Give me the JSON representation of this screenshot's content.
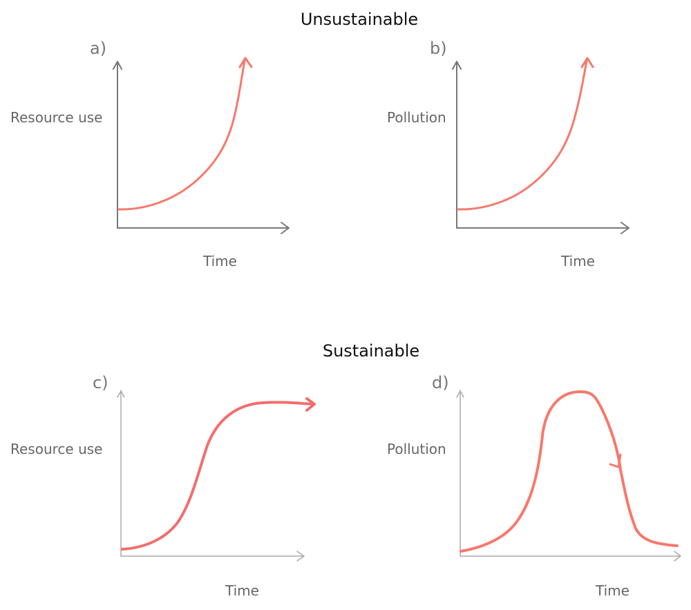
{
  "sections": {
    "unsustainable_title": "Unsustainable",
    "sustainable_title": "Sustainable"
  },
  "panels": [
    {
      "id": "a)",
      "ylabel": "Resource use",
      "xlabel": "Time",
      "shape": "exponential growth"
    },
    {
      "id": "b)",
      "ylabel": "Pollution",
      "xlabel": "Time",
      "shape": "exponential growth"
    },
    {
      "id": "c)",
      "ylabel": "Resource use",
      "xlabel": "Time",
      "shape": "S-curve plateau"
    },
    {
      "id": "d)",
      "ylabel": "Pollution",
      "xlabel": "Time",
      "shape": "rise, peak and decline"
    }
  ],
  "colors": {
    "curve": "#f7786b",
    "axis": "#888888",
    "title": "#111111",
    "label": "#666666"
  }
}
